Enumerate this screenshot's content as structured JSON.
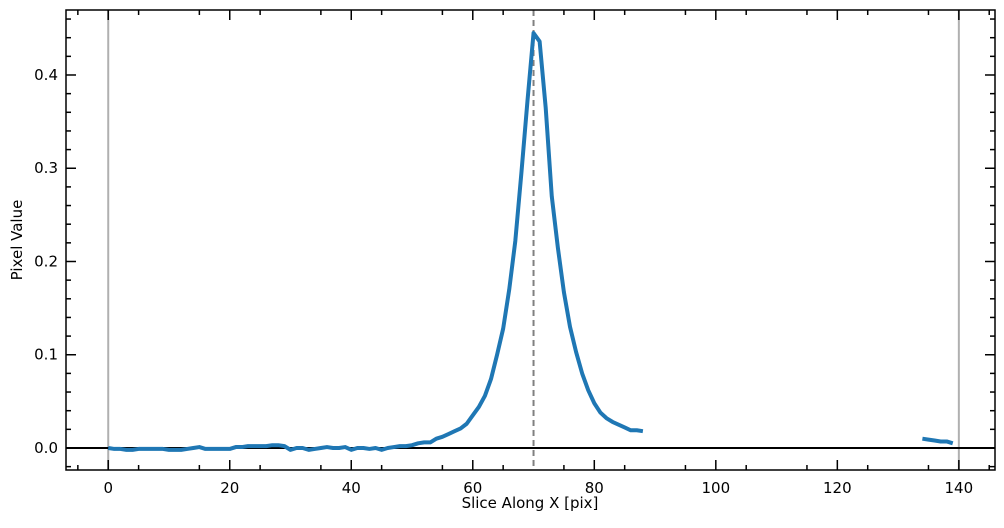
{
  "chart_data": {
    "type": "line",
    "xlabel": "Slice Along X [pix]",
    "ylabel": "Pixel Value",
    "x": [
      0,
      1,
      2,
      3,
      4,
      5,
      6,
      7,
      8,
      9,
      10,
      11,
      12,
      13,
      14,
      15,
      16,
      17,
      18,
      19,
      20,
      21,
      22,
      23,
      24,
      25,
      26,
      27,
      28,
      29,
      30,
      31,
      32,
      33,
      34,
      35,
      36,
      37,
      38,
      39,
      40,
      41,
      42,
      43,
      44,
      45,
      46,
      47,
      48,
      49,
      50,
      51,
      52,
      53,
      54,
      55,
      56,
      57,
      58,
      59,
      60,
      61,
      62,
      63,
      64,
      65,
      66,
      67,
      68,
      69,
      70,
      71,
      72,
      73,
      74,
      75,
      76,
      77,
      78,
      79,
      80,
      81,
      82,
      83,
      84,
      85,
      86,
      87,
      88,
      89,
      90,
      91,
      92,
      93,
      94,
      95,
      96,
      97,
      98,
      99,
      100,
      101,
      102,
      103,
      104,
      105,
      106,
      107,
      108,
      109,
      110,
      111,
      112,
      113,
      114,
      115,
      116,
      117,
      118,
      119,
      120,
      121,
      122,
      123,
      124,
      125,
      126,
      127,
      128,
      129,
      130,
      131,
      132,
      133,
      134,
      135,
      136,
      137,
      138,
      139
    ],
    "series": [
      {
        "color": "#1f77b4",
        "values": [
          0.0,
          -0.001,
          -0.001,
          -0.002,
          -0.002,
          -0.001,
          -0.001,
          -0.001,
          -0.001,
          -0.001,
          -0.002,
          -0.002,
          -0.002,
          -0.001,
          0.0,
          0.001,
          -0.001,
          -0.001,
          -0.001,
          -0.001,
          -0.001,
          0.001,
          0.001,
          0.002,
          0.002,
          0.002,
          0.002,
          0.003,
          0.003,
          0.002,
          -0.002,
          0.0,
          0.0,
          -0.002,
          -0.001,
          0.0,
          0.001,
          0.0,
          0.0,
          0.001,
          -0.002,
          0.0,
          0.0,
          -0.001,
          0.0,
          -0.002,
          0.0,
          0.001,
          0.002,
          0.002,
          0.003,
          0.005,
          0.006,
          0.006,
          0.01,
          0.012,
          0.015,
          0.018,
          0.021,
          0.026,
          0.035,
          0.044,
          0.056,
          0.074,
          0.1,
          0.128,
          0.17,
          0.222,
          0.295,
          0.372,
          0.445,
          0.436,
          0.365,
          0.27,
          0.215,
          0.167,
          0.13,
          0.103,
          0.08,
          0.062,
          0.048,
          0.038,
          0.032,
          0.028,
          0.025,
          0.022,
          0.019,
          0.019,
          0.018,
          null,
          null,
          null,
          null,
          null,
          null,
          null,
          null,
          null,
          null,
          null,
          null,
          null,
          null,
          null,
          null,
          null,
          null,
          null,
          null,
          null,
          null,
          null,
          null,
          null,
          null,
          null,
          null,
          null,
          null,
          null,
          null,
          null,
          null,
          null,
          null,
          null,
          null,
          null,
          null,
          null,
          null,
          null,
          null,
          null,
          0.01,
          0.009,
          0.008,
          0.007,
          0.007,
          0.005
        ]
      }
    ],
    "xlim": [
      -6.95,
      145.95
    ],
    "ylim": [
      -0.0236,
      0.4697
    ],
    "xticks": [
      0,
      20,
      40,
      60,
      80,
      100,
      120,
      140
    ],
    "yticks": [
      {
        "value": 0,
        "label": "0.0"
      },
      0.1,
      0.2,
      0.3,
      0.4
    ],
    "xminorticks": [
      -5,
      5,
      15,
      25,
      35,
      45,
      55,
      65,
      75,
      85,
      95,
      105,
      115,
      125,
      135,
      145
    ],
    "yminorticks": [
      -0.02,
      0.02,
      0.04,
      0.06,
      0.08,
      0.12,
      0.14,
      0.16,
      0.18,
      0.22,
      0.24,
      0.26,
      0.28,
      0.32,
      0.34,
      0.36,
      0.38,
      0.42,
      0.44,
      0.46
    ],
    "vlines": [
      {
        "x": 0,
        "color": "#b0b0b0",
        "dashed": false
      },
      {
        "x": 140,
        "color": "#b0b0b0",
        "dashed": false
      },
      {
        "x": 70,
        "color": "#808080",
        "dashed": true
      }
    ],
    "hline": {
      "y": 0,
      "color": "#000000"
    }
  }
}
